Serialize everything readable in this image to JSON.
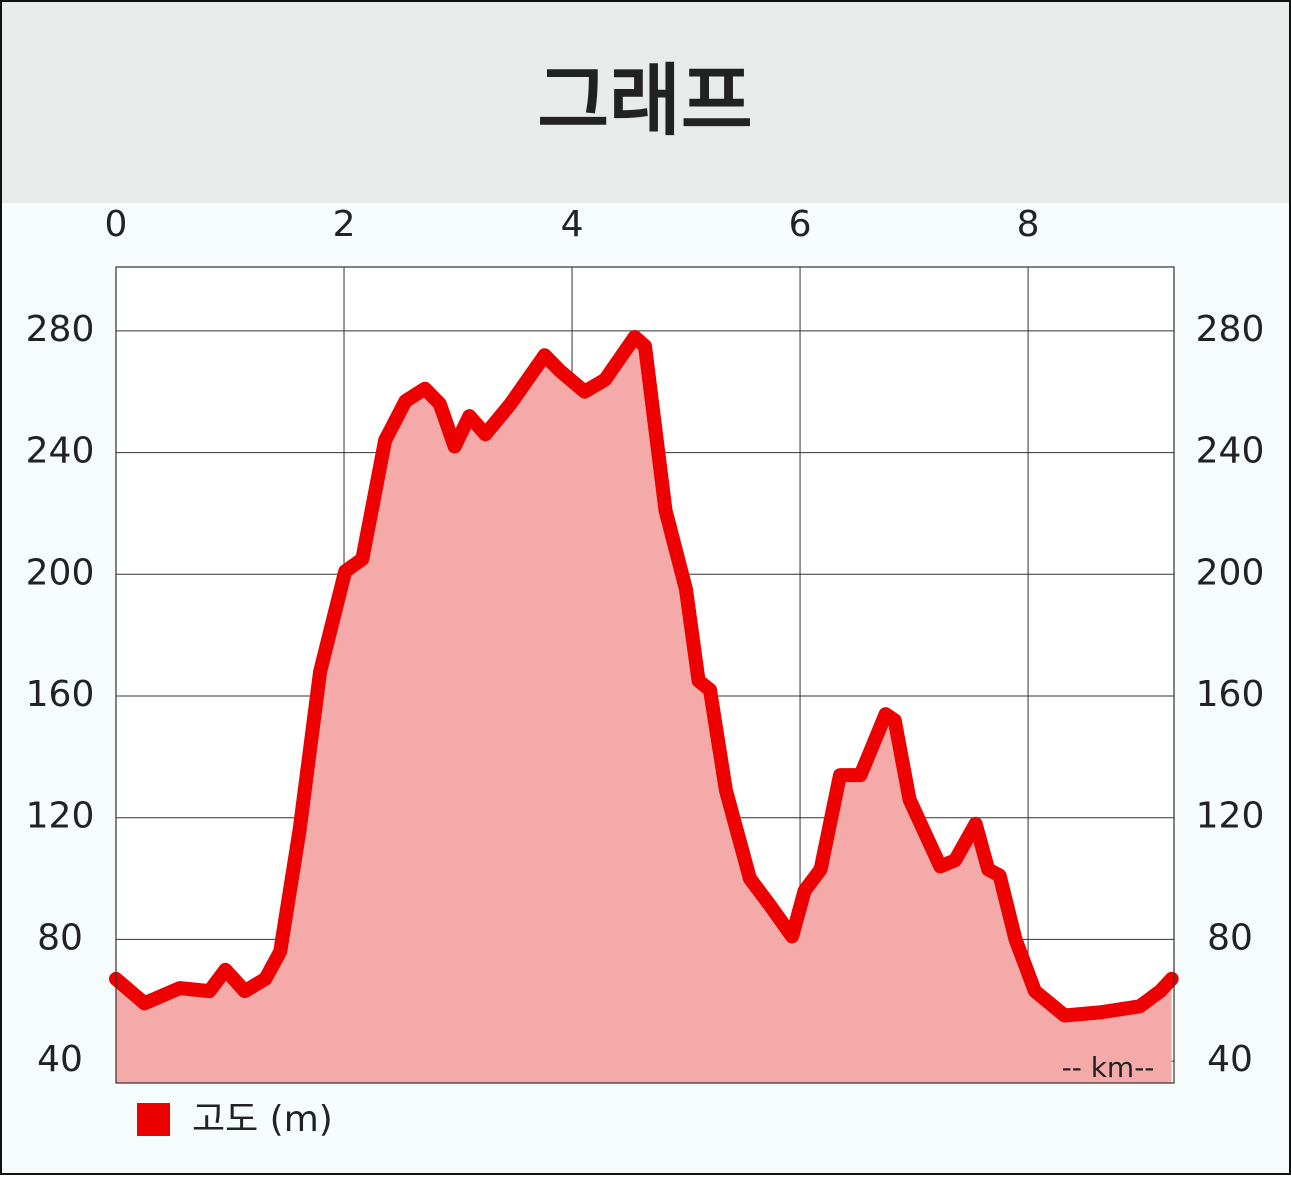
{
  "chart_data": {
    "type": "area",
    "title": "그래프",
    "x_label": "-- km--",
    "x": [
      0,
      0.25,
      0.56,
      0.82,
      0.96,
      1.13,
      1.31,
      1.44,
      1.61,
      1.79,
      2.01,
      2.16,
      2.36,
      2.54,
      2.71,
      2.84,
      2.97,
      3.1,
      3.24,
      3.46,
      3.76,
      3.89,
      4.11,
      4.29,
      4.55,
      4.64,
      4.82,
      5.0,
      5.11,
      5.21,
      5.35,
      5.56,
      5.74,
      5.93,
      6.04,
      6.18,
      6.35,
      6.53,
      6.75,
      6.83,
      6.96,
      7.23,
      7.36,
      7.54,
      7.65,
      7.75,
      7.89,
      8.06,
      8.32,
      8.63,
      8.98,
      9.16,
      9.26
    ],
    "series": [
      {
        "name": "고도 (m)",
        "color": "#ee0000",
        "fill": "#f5aaaa",
        "values": [
          67,
          59,
          64,
          63,
          70,
          63,
          67,
          76,
          116,
          168,
          201,
          205,
          244,
          257,
          261,
          256,
          242,
          252,
          246,
          256,
          272,
          267,
          260,
          264,
          278,
          275,
          221,
          195,
          165,
          162,
          129,
          100,
          91,
          81,
          96,
          103,
          134,
          134,
          154,
          152,
          126,
          104,
          106,
          118,
          103,
          101,
          80,
          63,
          55,
          56,
          58,
          63,
          67
        ]
      }
    ],
    "xlim": [
      0,
      9.28
    ],
    "xticks": [
      0,
      2,
      4,
      6,
      8
    ],
    "ylim": [
      32.8,
      301
    ],
    "yticks": [
      40,
      80,
      120,
      160,
      200,
      240,
      280
    ],
    "y2lim": [
      32.8,
      301
    ],
    "y2ticks": [
      40,
      80,
      120,
      160,
      200,
      240,
      280
    ],
    "grid": true,
    "legend": "bottom-left"
  }
}
